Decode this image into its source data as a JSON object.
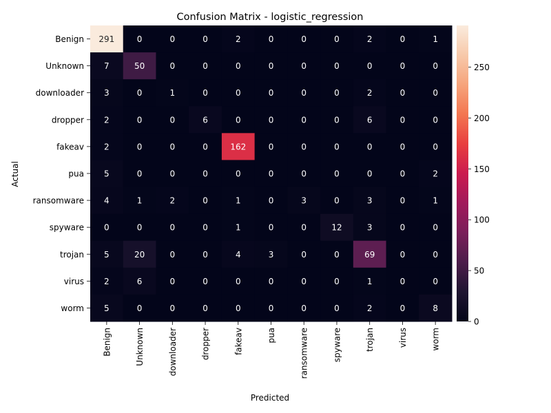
{
  "chart_data": {
    "type": "heatmap",
    "title": "Confusion Matrix - logistic_regression",
    "xlabel": "Predicted",
    "ylabel": "Actual",
    "x_categories": [
      "Benign",
      "Unknown",
      "downloader",
      "dropper",
      "fakeav",
      "pua",
      "ransomware",
      "spyware",
      "trojan",
      "virus",
      "worm"
    ],
    "y_categories": [
      "Benign",
      "Unknown",
      "downloader",
      "dropper",
      "fakeav",
      "pua",
      "ransomware",
      "spyware",
      "trojan",
      "virus",
      "worm"
    ],
    "values": [
      [
        291,
        0,
        0,
        0,
        2,
        0,
        0,
        0,
        2,
        0,
        1
      ],
      [
        7,
        50,
        0,
        0,
        0,
        0,
        0,
        0,
        0,
        0,
        0
      ],
      [
        3,
        0,
        1,
        0,
        0,
        0,
        0,
        0,
        2,
        0,
        0
      ],
      [
        2,
        0,
        0,
        6,
        0,
        0,
        0,
        0,
        6,
        0,
        0
      ],
      [
        2,
        0,
        0,
        0,
        162,
        0,
        0,
        0,
        0,
        0,
        0
      ],
      [
        5,
        0,
        0,
        0,
        0,
        0,
        0,
        0,
        0,
        0,
        2
      ],
      [
        4,
        1,
        2,
        0,
        1,
        0,
        3,
        0,
        3,
        0,
        1
      ],
      [
        0,
        0,
        0,
        0,
        1,
        0,
        0,
        12,
        3,
        0,
        0
      ],
      [
        5,
        20,
        0,
        0,
        4,
        3,
        0,
        0,
        69,
        0,
        0
      ],
      [
        2,
        6,
        0,
        0,
        0,
        0,
        0,
        0,
        1,
        0,
        0
      ],
      [
        5,
        0,
        0,
        0,
        0,
        0,
        0,
        0,
        2,
        0,
        8
      ]
    ],
    "colorbar": {
      "min": 0,
      "max": 291,
      "ticks": [
        0,
        50,
        100,
        150,
        200,
        250
      ]
    },
    "colormap": "rocket",
    "colors": {
      "stops": [
        "#03051a",
        "#1f1531",
        "#4c1d4b",
        "#7a1f5a",
        "#a11a5b",
        "#cb1b4f",
        "#e83f3f",
        "#f37651",
        "#f6a47c",
        "#f7c9aa",
        "#faebdd"
      ],
      "annotation_light": "#ffffff",
      "annotation_dark": "#262626"
    },
    "grid": false
  }
}
